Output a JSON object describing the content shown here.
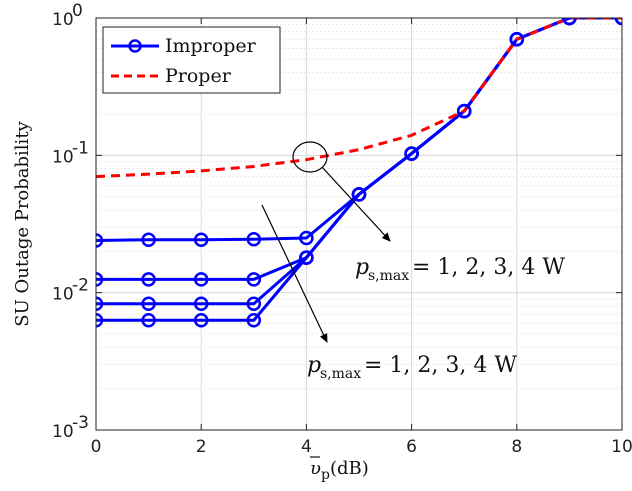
{
  "chart_data": {
    "type": "line",
    "xlabel_symbol": "υ",
    "xlabel_sub": "p",
    "xlabel_unit": "(dB)",
    "ylabel": "SU Outage Probability",
    "x": [
      0,
      1,
      2,
      3,
      4,
      5,
      6,
      7,
      8,
      9,
      10
    ],
    "xticks": [
      "0",
      "2",
      "4",
      "6",
      "8",
      "10"
    ],
    "yticks": [
      {
        "base": "10",
        "exp": "0"
      },
      {
        "base": "10",
        "exp": "-1"
      },
      {
        "base": "10",
        "exp": "-2"
      },
      {
        "base": "10",
        "exp": "-3"
      }
    ],
    "xlim": [
      0,
      10
    ],
    "ylim": [
      0.001,
      1
    ],
    "yscale": "log",
    "grid": true,
    "legend_position": "top-left",
    "legend": [
      {
        "label": "Improper",
        "color": "#0000ff",
        "style": "solid",
        "marker": "circle"
      },
      {
        "label": "Proper",
        "color": "#ff0000",
        "style": "dashed",
        "marker": "none"
      }
    ],
    "series": [
      {
        "name": "Improper",
        "group": "p_s,max = 1 W",
        "color": "#0000ff",
        "values": [
          0.0063,
          0.0063,
          0.0063,
          0.0063,
          0.018,
          0.052,
          0.103,
          0.21,
          0.7,
          1.0,
          1.0
        ]
      },
      {
        "name": "Improper",
        "group": "p_s,max = 2 W",
        "color": "#0000ff",
        "values": [
          0.0083,
          0.0083,
          0.0083,
          0.0083,
          0.018,
          0.052,
          0.103,
          0.21,
          0.7,
          1.0,
          1.0
        ]
      },
      {
        "name": "Improper",
        "group": "p_s,max = 3 W",
        "color": "#0000ff",
        "values": [
          0.0125,
          0.0125,
          0.0125,
          0.0125,
          0.018,
          0.052,
          0.103,
          0.21,
          0.7,
          1.0,
          1.0
        ]
      },
      {
        "name": "Improper",
        "group": "p_s,max = 4 W",
        "color": "#0000ff",
        "values": [
          0.024,
          0.0243,
          0.0243,
          0.0245,
          0.025,
          0.052,
          0.103,
          0.21,
          0.7,
          1.0,
          1.0
        ]
      },
      {
        "name": "Proper",
        "color": "#ff0000",
        "values": [
          0.07,
          0.073,
          0.077,
          0.083,
          0.093,
          0.11,
          0.14,
          0.21,
          0.7,
          1.0,
          1.0
        ]
      }
    ],
    "annotations": [
      {
        "symbol": "p",
        "sub": "s,max",
        "text": " = 1, 2, 3, 4 W"
      },
      {
        "symbol": "p",
        "sub": "s,max",
        "text": " = 1, 2, 3, 4 W"
      }
    ]
  }
}
